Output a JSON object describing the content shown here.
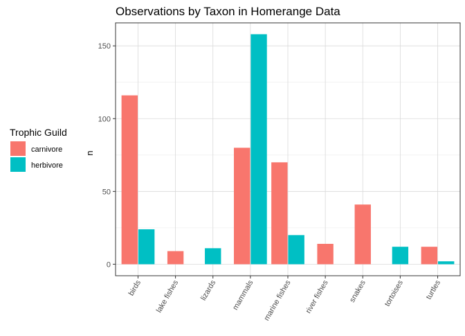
{
  "chart_data": {
    "type": "bar",
    "title": "Observations by Taxon in Homerange Data",
    "xlabel": "",
    "ylabel": "n",
    "categories": [
      "birds",
      "lake fishes",
      "lizards",
      "mammals",
      "marine fishes",
      "river fishes",
      "snakes",
      "tortoises",
      "turtles"
    ],
    "legend_title": "Trophic Guild",
    "legend_position": "left",
    "grid": true,
    "ylim": [
      -7.9,
      165.8
    ],
    "yticks": [
      0,
      50,
      100,
      150
    ],
    "ytick_labels": [
      "0",
      "50",
      "100",
      "150"
    ],
    "series": [
      {
        "name": "carnivore",
        "color": "#F8766D",
        "values": [
          116,
          9,
          0,
          80,
          70,
          14,
          41,
          0,
          12
        ]
      },
      {
        "name": "herbivore",
        "color": "#00BFC4",
        "values": [
          24,
          0,
          11,
          158,
          20,
          0,
          0,
          12,
          2
        ]
      }
    ]
  }
}
